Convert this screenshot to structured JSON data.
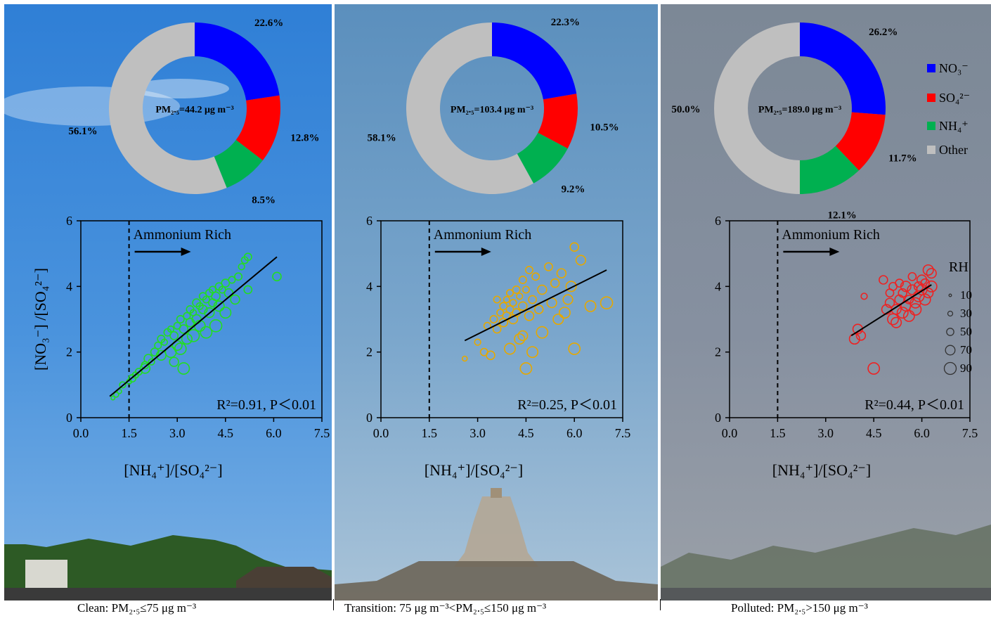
{
  "panels": [
    {
      "caption": "Clean: PM₂.₅≤75 μg m⁻³",
      "pm_label": "PM₂.₅=44.2 μg m⁻³",
      "r2_label": "R²=0.91, P＜0.01",
      "color": "#22dd22"
    },
    {
      "caption": "Transition: 75 μg m⁻³<PM₂.₅≤150 μg m⁻³",
      "pm_label": "PM₂.₅=103.4 μg m⁻³",
      "r2_label": "R²=0.25, P＜0.01",
      "color": "#e6a800"
    },
    {
      "caption": "Polluted: PM₂.₅>150 μg m⁻³",
      "pm_label": "PM₂.₅=189.0 μg m⁻³",
      "r2_label": "R²=0.44, P＜0.01",
      "color": "#ee2222"
    }
  ],
  "annotation": "Ammonium Rich",
  "rh_legend": {
    "title": "RH",
    "items": [
      "10",
      "30",
      "50",
      "70",
      "90"
    ]
  },
  "chart_data": [
    {
      "type": "pie",
      "donut": true,
      "center_label": "PM₂.₅=44.2 μg m⁻³",
      "labels": [
        "NO₃⁻",
        "SO₄²⁻",
        "NH₄⁺",
        "Other"
      ],
      "values": [
        22.6,
        12.8,
        8.5,
        56.1
      ],
      "value_labels": [
        "22.6%",
        "12.8%",
        "8.5%",
        "56.1%"
      ],
      "colors": [
        "#0000ff",
        "#ff0000",
        "#00b050",
        "#bfbfbf"
      ]
    },
    {
      "type": "pie",
      "donut": true,
      "center_label": "PM₂.₅=103.4 μg m⁻³",
      "labels": [
        "NO₃⁻",
        "SO₄²⁻",
        "NH₄⁺",
        "Other"
      ],
      "values": [
        22.3,
        10.5,
        9.2,
        58.1
      ],
      "value_labels": [
        "22.3%",
        "10.5%",
        "9.2%",
        "58.1%"
      ],
      "colors": [
        "#0000ff",
        "#ff0000",
        "#00b050",
        "#bfbfbf"
      ]
    },
    {
      "type": "pie",
      "donut": true,
      "center_label": "PM₂.₅=189.0 μg m⁻³",
      "labels": [
        "NO₃⁻",
        "SO₄²⁻",
        "NH₄⁺",
        "Other"
      ],
      "values": [
        26.2,
        11.7,
        12.1,
        50.0
      ],
      "value_labels": [
        "26.2%",
        "11.7%",
        "12.1%",
        "50.0%"
      ],
      "colors": [
        "#0000ff",
        "#ff0000",
        "#00b050",
        "#bfbfbf"
      ],
      "legend": {
        "placement": "right",
        "entries": [
          "NO₃⁻",
          "SO₄²⁻",
          "NH₄⁺",
          "Other"
        ]
      }
    },
    {
      "type": "scatter",
      "xlabel": "[NH₄⁺]/[SO₄²⁻]",
      "ylabel": "[NO₃⁻] /[SO₄²⁻]",
      "xlim": [
        0,
        7.5
      ],
      "ylim": [
        0,
        6
      ],
      "xticks": [
        "0.0",
        "1.5",
        "3.0",
        "4.5",
        "6.0",
        "7.5"
      ],
      "yticks": [
        "0",
        "2",
        "4",
        "6"
      ],
      "threshold_x": 1.5,
      "fit_line": {
        "x": [
          0.9,
          6.1
        ],
        "y": [
          0.65,
          4.9
        ]
      },
      "annotation": "R²=0.91, P＜0.01",
      "size_variable": "RH",
      "points": [
        [
          1.0,
          0.6,
          20
        ],
        [
          1.1,
          0.7,
          30
        ],
        [
          1.2,
          0.8,
          25
        ],
        [
          1.3,
          1.0,
          40
        ],
        [
          1.5,
          1.1,
          30
        ],
        [
          1.6,
          1.2,
          50
        ],
        [
          1.8,
          1.4,
          45
        ],
        [
          2.0,
          1.6,
          50
        ],
        [
          2.1,
          1.8,
          60
        ],
        [
          2.2,
          1.7,
          40
        ],
        [
          2.3,
          2.0,
          55
        ],
        [
          2.4,
          2.2,
          45
        ],
        [
          2.5,
          1.9,
          70
        ],
        [
          2.5,
          2.4,
          50
        ],
        [
          2.6,
          2.3,
          40
        ],
        [
          2.7,
          2.6,
          50
        ],
        [
          2.8,
          2.0,
          80
        ],
        [
          2.8,
          2.7,
          40
        ],
        [
          2.9,
          2.5,
          55
        ],
        [
          3.0,
          2.8,
          45
        ],
        [
          3.0,
          2.2,
          70
        ],
        [
          3.1,
          3.0,
          50
        ],
        [
          3.1,
          2.1,
          85
        ],
        [
          3.2,
          2.7,
          60
        ],
        [
          3.3,
          3.1,
          45
        ],
        [
          3.3,
          2.4,
          75
        ],
        [
          3.4,
          3.3,
          50
        ],
        [
          3.4,
          2.9,
          60
        ],
        [
          3.5,
          3.2,
          40
        ],
        [
          3.5,
          2.5,
          90
        ],
        [
          3.6,
          3.5,
          55
        ],
        [
          3.6,
          3.0,
          65
        ],
        [
          3.7,
          3.4,
          45
        ],
        [
          3.7,
          2.8,
          80
        ],
        [
          3.8,
          3.7,
          50
        ],
        [
          3.8,
          3.3,
          60
        ],
        [
          3.9,
          3.6,
          45
        ],
        [
          3.9,
          2.6,
          85
        ],
        [
          4.0,
          3.8,
          50
        ],
        [
          4.0,
          3.2,
          70
        ],
        [
          4.1,
          3.9,
          45
        ],
        [
          4.1,
          3.5,
          55
        ],
        [
          4.2,
          3.7,
          60
        ],
        [
          4.2,
          2.8,
          90
        ],
        [
          4.3,
          4.0,
          50
        ],
        [
          4.3,
          3.4,
          75
        ],
        [
          4.4,
          3.9,
          45
        ],
        [
          4.5,
          4.1,
          55
        ],
        [
          4.5,
          3.2,
          80
        ],
        [
          4.6,
          3.8,
          60
        ],
        [
          4.7,
          4.2,
          45
        ],
        [
          4.8,
          3.6,
          65
        ],
        [
          4.9,
          4.3,
          50
        ],
        [
          5.0,
          4.6,
          40
        ],
        [
          5.1,
          4.8,
          45
        ],
        [
          5.2,
          4.9,
          50
        ],
        [
          5.2,
          3.9,
          55
        ],
        [
          6.1,
          4.3,
          60
        ],
        [
          2.0,
          1.5,
          70
        ],
        [
          3.2,
          1.5,
          85
        ],
        [
          1.7,
          1.3,
          40
        ],
        [
          2.9,
          1.7,
          65
        ]
      ]
    },
    {
      "type": "scatter",
      "xlabel": "[NH₄⁺]/[SO₄²⁻]",
      "xlim": [
        0,
        7.5
      ],
      "ylim": [
        0,
        6
      ],
      "xticks": [
        "0.0",
        "1.5",
        "3.0",
        "4.5",
        "6.0",
        "7.5"
      ],
      "yticks": [
        "0",
        "2",
        "4",
        "6"
      ],
      "threshold_x": 1.5,
      "fit_line": {
        "x": [
          2.6,
          7.0
        ],
        "y": [
          2.35,
          4.5
        ]
      },
      "annotation": "R²=0.25, P＜0.01",
      "size_variable": "RH",
      "points": [
        [
          2.6,
          1.8,
          30
        ],
        [
          3.0,
          2.3,
          40
        ],
        [
          3.3,
          2.8,
          45
        ],
        [
          3.5,
          3.0,
          50
        ],
        [
          3.6,
          2.7,
          55
        ],
        [
          3.7,
          3.2,
          45
        ],
        [
          3.8,
          3.4,
          50
        ],
        [
          3.8,
          2.9,
          60
        ],
        [
          3.9,
          3.6,
          40
        ],
        [
          3.9,
          3.1,
          55
        ],
        [
          4.0,
          3.8,
          45
        ],
        [
          4.0,
          3.3,
          50
        ],
        [
          4.0,
          2.1,
          80
        ],
        [
          4.1,
          3.5,
          45
        ],
        [
          4.1,
          3.0,
          65
        ],
        [
          4.2,
          3.9,
          50
        ],
        [
          4.2,
          3.2,
          55
        ],
        [
          4.3,
          3.7,
          40
        ],
        [
          4.3,
          2.4,
          75
        ],
        [
          4.4,
          4.2,
          50
        ],
        [
          4.4,
          3.4,
          60
        ],
        [
          4.5,
          3.9,
          45
        ],
        [
          4.5,
          1.5,
          85
        ],
        [
          4.6,
          4.5,
          50
        ],
        [
          4.6,
          3.1,
          65
        ],
        [
          4.7,
          3.6,
          55
        ],
        [
          4.7,
          2.0,
          80
        ],
        [
          4.8,
          4.3,
          50
        ],
        [
          4.9,
          3.3,
          60
        ],
        [
          5.0,
          3.9,
          65
        ],
        [
          5.0,
          2.6,
          85
        ],
        [
          5.2,
          4.6,
          55
        ],
        [
          5.3,
          3.5,
          70
        ],
        [
          5.4,
          4.1,
          60
        ],
        [
          5.5,
          3.0,
          75
        ],
        [
          5.6,
          4.4,
          65
        ],
        [
          5.7,
          3.2,
          80
        ],
        [
          5.8,
          3.6,
          70
        ],
        [
          5.9,
          4.0,
          75
        ],
        [
          6.0,
          5.2,
          60
        ],
        [
          6.0,
          2.1,
          85
        ],
        [
          6.2,
          4.8,
          70
        ],
        [
          6.5,
          3.4,
          80
        ],
        [
          7.0,
          3.5,
          90
        ],
        [
          3.2,
          2.0,
          50
        ],
        [
          3.4,
          1.9,
          60
        ],
        [
          4.4,
          2.5,
          70
        ],
        [
          3.6,
          3.6,
          45
        ]
      ]
    },
    {
      "type": "scatter",
      "xlabel": "[NH₄⁺]/[SO₄²⁻]",
      "xlim": [
        0,
        7.5
      ],
      "ylim": [
        0,
        6
      ],
      "xticks": [
        "0.0",
        "1.5",
        "3.0",
        "4.5",
        "6.0",
        "7.5"
      ],
      "yticks": [
        "0",
        "2",
        "4",
        "6"
      ],
      "threshold_x": 1.5,
      "fit_line": {
        "x": [
          3.8,
          6.3
        ],
        "y": [
          2.5,
          4.05
        ]
      },
      "annotation": "R²=0.44, P＜0.01",
      "size_variable": "RH",
      "points": [
        [
          3.9,
          2.4,
          75
        ],
        [
          4.0,
          2.7,
          70
        ],
        [
          4.1,
          2.5,
          65
        ],
        [
          4.2,
          3.7,
          40
        ],
        [
          4.5,
          1.5,
          85
        ],
        [
          4.8,
          4.2,
          60
        ],
        [
          4.9,
          3.3,
          70
        ],
        [
          5.0,
          3.5,
          65
        ],
        [
          5.1,
          3.0,
          80
        ],
        [
          5.1,
          4.0,
          55
        ],
        [
          5.2,
          3.3,
          70
        ],
        [
          5.2,
          2.9,
          75
        ],
        [
          5.3,
          3.6,
          65
        ],
        [
          5.3,
          4.1,
          55
        ],
        [
          5.4,
          3.2,
          80
        ],
        [
          5.4,
          3.8,
          60
        ],
        [
          5.5,
          3.4,
          70
        ],
        [
          5.5,
          4.0,
          75
        ],
        [
          5.6,
          3.6,
          60
        ],
        [
          5.6,
          3.1,
          80
        ],
        [
          5.7,
          3.9,
          70
        ],
        [
          5.7,
          4.3,
          55
        ],
        [
          5.8,
          3.5,
          75
        ],
        [
          5.8,
          3.3,
          85
        ],
        [
          5.9,
          4.0,
          65
        ],
        [
          5.9,
          3.7,
          80
        ],
        [
          6.0,
          3.9,
          75
        ],
        [
          6.0,
          4.2,
          70
        ],
        [
          6.1,
          3.6,
          80
        ],
        [
          6.2,
          4.5,
          75
        ],
        [
          6.2,
          3.8,
          70
        ],
        [
          6.3,
          4.4,
          70
        ],
        [
          6.3,
          4.0,
          80
        ],
        [
          6.1,
          4.1,
          60
        ],
        [
          5.0,
          3.8,
          55
        ]
      ]
    }
  ]
}
